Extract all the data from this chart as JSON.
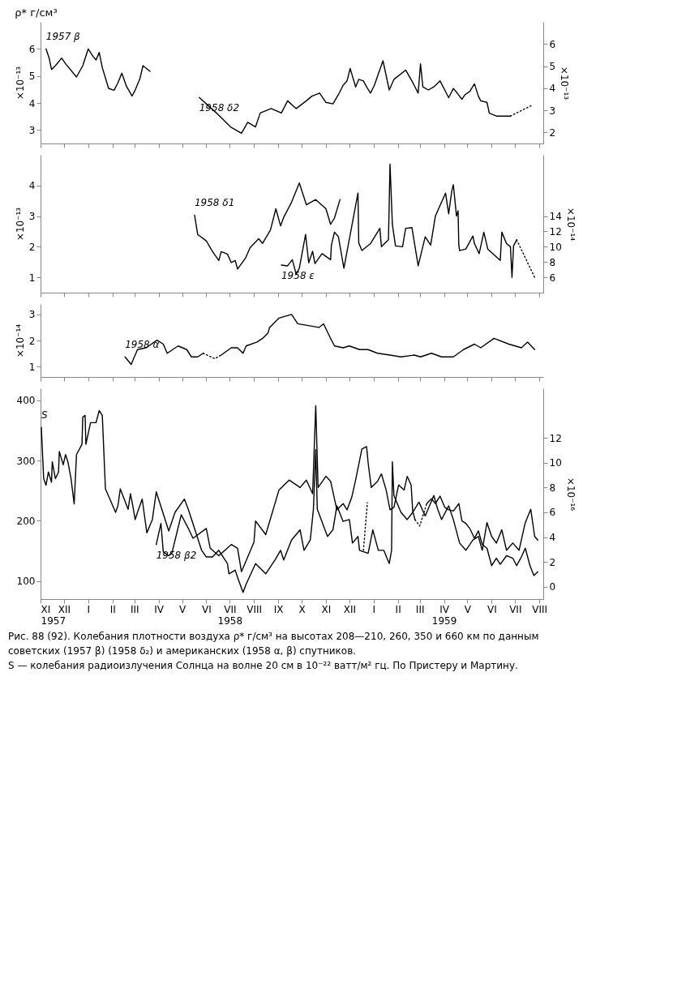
{
  "chart_data": [
    {
      "type": "line",
      "title": "ρ* г/см³",
      "tick_labels": "y",
      "xlim": [
        "1957-11-01",
        "1959-08-06"
      ],
      "xticks": [
        {
          "value": "1957-11-01",
          "label": null
        },
        {
          "value": "1957-12-01",
          "label": null
        },
        {
          "value": "1958-01-01",
          "label": null
        },
        {
          "value": "1958-02-01",
          "label": null
        },
        {
          "value": "1958-03-01",
          "label": null
        },
        {
          "value": "1958-04-01",
          "label": null
        },
        {
          "value": "1958-05-01",
          "label": null
        },
        {
          "value": "1958-06-01",
          "label": null
        },
        {
          "value": "1958-07-01",
          "label": null
        },
        {
          "value": "1958-08-01",
          "label": null
        },
        {
          "value": "1958-09-01",
          "label": null
        },
        {
          "value": "1958-10-01",
          "label": null
        },
        {
          "value": "1958-11-01",
          "label": null
        },
        {
          "value": "1958-12-01",
          "label": null
        },
        {
          "value": "1959-01-01",
          "label": null
        },
        {
          "value": "1959-02-01",
          "label": null
        },
        {
          "value": "1959-03-01",
          "label": null
        },
        {
          "value": "1959-04-01",
          "label": null
        },
        {
          "value": "1959-05-01",
          "label": null
        },
        {
          "value": "1959-06-01",
          "label": null
        },
        {
          "value": "1959-07-01",
          "label": null
        },
        {
          "value": "1959-08-01",
          "label": null
        }
      ],
      "ylabel": "×10⁻¹³",
      "ylim": [
        2.5,
        7.0
      ],
      "yticks": [
        3,
        4,
        5,
        6
      ],
      "y2label": "×10⁻¹³",
      "y2lim": [
        1.5,
        7.0
      ],
      "y2ticks": [
        2,
        3,
        4,
        5,
        6
      ],
      "series": [
        {
          "name": "1957 β",
          "color": "#000000",
          "axis": "y",
          "x": [
            "1957-11-08",
            "1957-11-12",
            "1957-11-15",
            "1957-11-20",
            "1957-11-28",
            "1957-12-03",
            "1957-12-17",
            "1957-12-25",
            "1958-01-01",
            "1958-01-07",
            "1958-01-11",
            "1958-01-15",
            "1958-01-19",
            "1958-01-27",
            "1958-02-03",
            "1958-02-08",
            "1958-02-13",
            "1958-02-19",
            "1958-02-26",
            "1958-03-02",
            "1958-03-08",
            "1958-03-12",
            "1958-03-21"
          ],
          "values": [
            6.0,
            5.66,
            5.24,
            5.38,
            5.66,
            5.45,
            4.96,
            5.38,
            6.0,
            5.73,
            5.59,
            5.87,
            5.31,
            4.54,
            4.47,
            4.75,
            5.1,
            4.61,
            4.26,
            4.47,
            4.89,
            5.38,
            5.17
          ]
        },
        {
          "name": "1958 δ2",
          "color": "#000000",
          "axis": "y2",
          "x": [
            "1958-05-23",
            "1958-06-14",
            "1958-07-02",
            "1958-07-16",
            "1958-07-24",
            "1958-08-03",
            "1958-08-09",
            "1958-08-23",
            "1958-09-05",
            "1958-09-13",
            "1958-09-24",
            "1958-10-07",
            "1958-10-14",
            "1958-10-24",
            "1958-11-01",
            "1958-11-10",
            "1958-11-17",
            "1958-11-23",
            "1958-11-28",
            "1958-12-02",
            "1958-12-05",
            "1958-12-09",
            "1958-12-13",
            "1958-12-19",
            "1958-12-23",
            "1958-12-28",
            "1959-01-02",
            "1959-01-06",
            "1959-01-13",
            "1959-01-21",
            "1959-01-27",
            "1959-02-11",
            "1959-02-19",
            "1959-02-27",
            "1959-03-02",
            "1959-03-05",
            "1959-03-12",
            "1959-03-19",
            "1959-03-27",
            "1959-04-02",
            "1959-04-07",
            "1959-04-13",
            "1959-04-18",
            "1959-04-24",
            "1959-04-28",
            "1959-05-04",
            "1959-05-10",
            "1959-05-15",
            "1959-05-18",
            "1959-05-26",
            "1959-05-29",
            "1959-06-07",
            "1959-06-25"
          ],
          "values": [
            3.58,
            2.88,
            2.25,
            1.96,
            2.46,
            2.25,
            2.88,
            3.08,
            2.88,
            3.43,
            3.08,
            3.43,
            3.64,
            3.78,
            3.36,
            3.29,
            3.71,
            4.13,
            4.33,
            4.89,
            4.54,
            4.06,
            4.4,
            4.33,
            4.06,
            3.78,
            4.13,
            4.54,
            5.24,
            3.92,
            4.4,
            4.82,
            4.33,
            3.78,
            5.1,
            4.06,
            3.92,
            4.06,
            4.33,
            3.92,
            3.57,
            3.99,
            3.78,
            3.5,
            3.71,
            3.85,
            4.2,
            3.64,
            3.43,
            3.36,
            2.87,
            2.74,
            2.74
          ]
        },
        {
          "color": "#000000",
          "axis": "y2",
          "line_style": "dotted",
          "x": [
            "1959-06-25",
            "1959-07-22"
          ],
          "values": [
            2.74,
            3.22
          ]
        }
      ]
    },
    {
      "type": "line",
      "tick_labels": "y",
      "xlim": [
        "1957-11-01",
        "1959-08-06"
      ],
      "xticks": [
        {
          "value": "1957-11-01",
          "label": null
        },
        {
          "value": "1957-12-01",
          "label": null
        },
        {
          "value": "1958-01-01",
          "label": null
        },
        {
          "value": "1958-02-01",
          "label": null
        },
        {
          "value": "1958-03-01",
          "label": null
        },
        {
          "value": "1958-04-01",
          "label": null
        },
        {
          "value": "1958-05-01",
          "label": null
        },
        {
          "value": "1958-06-01",
          "label": null
        },
        {
          "value": "1958-07-01",
          "label": null
        },
        {
          "value": "1958-08-01",
          "label": null
        },
        {
          "value": "1958-09-01",
          "label": null
        },
        {
          "value": "1958-10-01",
          "label": null
        },
        {
          "value": "1958-11-01",
          "label": null
        },
        {
          "value": "1958-12-01",
          "label": null
        },
        {
          "value": "1959-01-01",
          "label": null
        },
        {
          "value": "1959-02-01",
          "label": null
        },
        {
          "value": "1959-03-01",
          "label": null
        },
        {
          "value": "1959-04-01",
          "label": null
        },
        {
          "value": "1959-05-01",
          "label": null
        },
        {
          "value": "1959-06-01",
          "label": null
        },
        {
          "value": "1959-07-01",
          "label": null
        },
        {
          "value": "1959-08-01",
          "label": null
        }
      ],
      "ylabel": "×10⁻¹³",
      "ylim": [
        0.5,
        5.0
      ],
      "yticks": [
        1,
        2,
        3,
        4
      ],
      "y2label": "×10⁻¹⁴",
      "y2lim": [
        4,
        22
      ],
      "y2ticks": [
        6,
        8,
        10,
        12,
        14
      ],
      "series": [
        {
          "name": "1958 δ1",
          "color": "#000000",
          "axis": "y",
          "x": [
            "1958-05-17",
            "1958-05-21",
            "1958-06-01",
            "1958-06-09",
            "1958-06-17",
            "1958-06-20",
            "1958-06-28",
            "1958-07-03",
            "1958-07-08",
            "1958-07-11",
            "1958-07-21",
            "1958-07-27",
            "1958-08-07",
            "1958-08-12",
            "1958-08-22",
            "1958-08-29",
            "1958-09-04",
            "1958-09-08",
            "1958-09-18",
            "1958-09-28",
            "1958-10-07",
            "1958-10-19",
            "1958-11-01",
            "1958-11-07",
            "1958-11-12",
            "1958-11-19"
          ],
          "values": [
            3.03,
            2.4,
            2.19,
            1.84,
            1.55,
            1.84,
            1.76,
            1.48,
            1.55,
            1.27,
            1.62,
            1.97,
            2.26,
            2.11,
            2.54,
            3.24,
            2.68,
            2.96,
            3.45,
            4.08,
            3.37,
            3.54,
            3.24,
            2.73,
            2.94,
            3.54
          ]
        },
        {
          "name": "1958 ε",
          "color": "#000000",
          "axis": "y2",
          "x": [
            "1958-09-05",
            "1958-09-13",
            "1958-09-19",
            "1958-09-24",
            "1958-09-28",
            "1958-10-06",
            "1958-10-10",
            "1958-10-15",
            "1958-10-18",
            "1958-10-27",
            "1958-11-07",
            "1958-11-08",
            "1958-11-12",
            "1958-11-17",
            "1958-11-24",
            "1958-12-12",
            "1958-12-13",
            "1958-12-17",
            "1958-12-28",
            "1959-01-09",
            "1959-01-11",
            "1959-01-20",
            "1959-01-22",
            "1959-01-25",
            "1959-01-29",
            "1959-02-07",
            "1959-02-11",
            "1959-02-19",
            "1959-02-27",
            "1959-03-08",
            "1959-03-15",
            "1959-03-21",
            "1959-04-03",
            "1959-04-07",
            "1959-04-11",
            "1959-04-13",
            "1959-04-17",
            "1959-04-19",
            "1959-04-20",
            "1959-04-21",
            "1959-04-29",
            "1959-05-08",
            "1959-05-10",
            "1959-05-16",
            "1959-05-22",
            "1959-05-27",
            "1959-06-12",
            "1959-06-14",
            "1959-06-20",
            "1959-06-25",
            "1959-06-27",
            "1959-06-29",
            "1959-07-03"
          ],
          "values": [
            7.6,
            7.5,
            8.3,
            6.4,
            7.2,
            11.6,
            7.9,
            9.4,
            7.8,
            9.1,
            8.3,
            10.2,
            11.9,
            11.3,
            7.2,
            17.0,
            10.5,
            9.5,
            10.4,
            12.4,
            10.0,
            10.9,
            20.8,
            12.9,
            10.1,
            10.0,
            12.4,
            12.5,
            7.5,
            11.3,
            10.2,
            14.0,
            17.0,
            14.3,
            17.3,
            18.1,
            14.0,
            14.7,
            10.2,
            9.5,
            9.7,
            11.4,
            10.4,
            9.1,
            11.9,
            9.7,
            8.2,
            11.9,
            10.4,
            10.0,
            6.0,
            10.1,
            10.9
          ]
        },
        {
          "color": "#000000",
          "axis": "y2",
          "line_style": "dotted",
          "x": [
            "1959-07-03",
            "1959-07-26"
          ],
          "values": [
            10.9,
            6.0
          ]
        }
      ]
    },
    {
      "type": "line",
      "tick_labels": "y",
      "xlim": [
        "1957-11-01",
        "1959-08-06"
      ],
      "xticks": [
        {
          "value": "1957-11-01",
          "label": null
        },
        {
          "value": "1957-12-01",
          "label": null
        },
        {
          "value": "1958-01-01",
          "label": null
        },
        {
          "value": "1958-02-01",
          "label": null
        },
        {
          "value": "1958-03-01",
          "label": null
        },
        {
          "value": "1958-04-01",
          "label": null
        },
        {
          "value": "1958-05-01",
          "label": null
        },
        {
          "value": "1958-06-01",
          "label": null
        },
        {
          "value": "1958-07-01",
          "label": null
        },
        {
          "value": "1958-08-01",
          "label": null
        },
        {
          "value": "1958-09-01",
          "label": null
        },
        {
          "value": "1958-10-01",
          "label": null
        },
        {
          "value": "1958-11-01",
          "label": null
        },
        {
          "value": "1958-12-01",
          "label": null
        },
        {
          "value": "1959-01-01",
          "label": null
        },
        {
          "value": "1959-02-01",
          "label": null
        },
        {
          "value": "1959-03-01",
          "label": null
        },
        {
          "value": "1959-04-01",
          "label": null
        },
        {
          "value": "1959-05-01",
          "label": null
        },
        {
          "value": "1959-06-01",
          "label": null
        },
        {
          "value": "1959-07-01",
          "label": null
        },
        {
          "value": "1959-08-01",
          "label": null
        }
      ],
      "ylabel": "×10⁻¹⁴",
      "ylim": [
        0.6,
        3.4
      ],
      "yticks": [
        1,
        2,
        3
      ],
      "series": [
        {
          "name": "1958 α",
          "color": "#000000",
          "axis": "y",
          "x": [
            "1958-02-17",
            "1958-02-25",
            "1958-02-28",
            "1958-03-05",
            "1958-03-16",
            "1958-03-30",
            "1958-04-07",
            "1958-04-12",
            "1958-04-26",
            "1958-05-07",
            "1958-05-13",
            "1958-05-21",
            "1958-05-28"
          ],
          "values": [
            1.37,
            1.08,
            1.3,
            1.65,
            1.72,
            2.01,
            1.86,
            1.51,
            1.79,
            1.65,
            1.37,
            1.37,
            1.51
          ]
        },
        {
          "color": "#000000",
          "axis": "y",
          "x": [
            "1958-06-20",
            "1958-07-03",
            "1958-07-11",
            "1958-07-18",
            "1958-07-22",
            "1958-08-05",
            "1958-08-12",
            "1958-08-19",
            "1958-08-21",
            "1958-09-02",
            "1958-09-10",
            "1958-09-18",
            "1958-09-26",
            "1958-10-23",
            "1958-10-29",
            "1958-11-07",
            "1958-11-12",
            "1958-11-23",
            "1958-12-01",
            "1958-12-14",
            "1958-12-25",
            "1959-01-06",
            "1959-01-22",
            "1959-02-05",
            "1959-02-22",
            "1959-03-02",
            "1959-03-16",
            "1959-03-29",
            "1959-04-13",
            "1959-04-26",
            "1959-05-10",
            "1959-05-18",
            "1959-06-04",
            "1959-06-23",
            "1959-07-09",
            "1959-07-17",
            "1959-07-26"
          ],
          "values": [
            1.44,
            1.72,
            1.72,
            1.51,
            1.79,
            1.94,
            2.08,
            2.29,
            2.5,
            2.86,
            2.93,
            3.0,
            2.64,
            2.5,
            2.64,
            2.08,
            1.79,
            1.72,
            1.79,
            1.65,
            1.65,
            1.51,
            1.44,
            1.37,
            1.44,
            1.37,
            1.51,
            1.37,
            1.37,
            1.65,
            1.86,
            1.72,
            2.08,
            1.86,
            1.72,
            1.94,
            1.65
          ]
        },
        {
          "color": "#000000",
          "axis": "y",
          "line_style": "dotted",
          "x": [
            "1958-05-28",
            "1958-06-12",
            "1958-06-20"
          ],
          "values": [
            1.51,
            1.3,
            1.44
          ]
        }
      ]
    },
    {
      "type": "line",
      "annotations": [
        "Рис. 88 (92). Колебания плотности воздуха ρ* г/см³ на высотах 208—210, 260, 350 и 660 км по данным советских (1957 β) (1958 δ₂) и американских (1958 α, β) спутников.",
        "S — колебания радиоизлучения Солнца на волне 20 см в 10⁻²² ватт/м² гц. По Пристеру и Мартину."
      ],
      "xlim": [
        "1957-11-01",
        "1959-08-06"
      ],
      "xticks": [
        {
          "value": "1957-11-01",
          "label": "XI\n1957"
        },
        {
          "value": "1957-12-01",
          "label": "XII"
        },
        {
          "value": "1958-01-01",
          "label": "I"
        },
        {
          "value": "1958-02-01",
          "label": "II"
        },
        {
          "value": "1958-03-01",
          "label": "III"
        },
        {
          "value": "1958-04-01",
          "label": "IV"
        },
        {
          "value": "1958-05-01",
          "label": "V"
        },
        {
          "value": "1958-06-01",
          "label": "VI"
        },
        {
          "value": "1958-07-01",
          "label": "VII\n1958"
        },
        {
          "value": "1958-08-01",
          "label": "VIII"
        },
        {
          "value": "1958-09-01",
          "label": "IX"
        },
        {
          "value": "1958-10-01",
          "label": "X"
        },
        {
          "value": "1958-11-01",
          "label": "XI"
        },
        {
          "value": "1958-12-01",
          "label": "XII"
        },
        {
          "value": "1959-01-01",
          "label": "I"
        },
        {
          "value": "1959-02-01",
          "label": "II"
        },
        {
          "value": "1959-03-01",
          "label": "III"
        },
        {
          "value": "1959-04-01",
          "label": "IV\n1959"
        },
        {
          "value": "1959-05-01",
          "label": "V"
        },
        {
          "value": "1959-06-01",
          "label": "VI"
        },
        {
          "value": "1959-07-01",
          "label": "VII"
        },
        {
          "value": "1959-08-01",
          "label": "VIII"
        }
      ],
      "ylim": [
        70,
        420
      ],
      "yticks": [
        100,
        200,
        300,
        400
      ],
      "y2label": "×10⁻¹⁶",
      "y2lim": [
        -1,
        16
      ],
      "y2ticks": [
        0,
        2,
        4,
        6,
        8,
        10,
        12
      ],
      "series": [
        {
          "name": "S",
          "color": "#000000",
          "axis": "y",
          "x": [
            "1957-11-02",
            "1957-11-05",
            "1957-11-08",
            "1957-11-11",
            "1957-11-15",
            "1957-11-16",
            "1957-11-20",
            "1957-11-24",
            "1957-11-25",
            "1957-11-30",
            "1957-12-03",
            "1957-12-06",
            "1957-12-10",
            "1957-12-14",
            "1957-12-17",
            "1957-12-24",
            "1957-12-25",
            "1957-12-28",
            "1957-12-29",
            "1958-01-04",
            "1958-01-11",
            "1958-01-15",
            "1958-01-19",
            "1958-01-23",
            "1958-02-05",
            "1958-02-08",
            "1958-02-11",
            "1958-02-21",
            "1958-02-24",
            "1958-02-27",
            "1958-03-02",
            "1958-03-05",
            "1958-03-11",
            "1958-03-14",
            "1958-03-17",
            "1958-03-24",
            "1958-03-29",
            "1958-04-14",
            "1958-04-22",
            "1958-05-04",
            "1958-05-09",
            "1958-05-26",
            "1958-06-01",
            "1958-06-09",
            "1958-06-17",
            "1958-06-28",
            "1958-06-30",
            "1958-07-08",
            "1958-07-11",
            "1958-07-18",
            "1958-07-22",
            "1958-08-03",
            "1958-08-16",
            "1958-08-28",
            "1958-09-04",
            "1958-09-08",
            "1958-09-18",
            "1958-09-29",
            "1958-10-04",
            "1958-10-12",
            "1958-10-16",
            "1958-10-19",
            "1958-10-21",
            "1958-10-26",
            "1958-11-03",
            "1958-11-10",
            "1958-11-15",
            "1958-11-23",
            "1958-12-01",
            "1958-12-05",
            "1958-12-12",
            "1958-12-14",
            "1958-12-25",
            "1958-12-31",
            "1959-01-07",
            "1959-01-14",
            "1959-01-21",
            "1959-01-24",
            "1959-01-25",
            "1959-01-27",
            "1959-02-05",
            "1959-02-13",
            "1959-02-20",
            "1959-02-28",
            "1959-03-08",
            "1959-03-19",
            "1959-03-24",
            "1959-03-29",
            "1959-04-07",
            "1959-04-13",
            "1959-04-21",
            "1959-04-29",
            "1959-05-08",
            "1959-05-15",
            "1959-05-20",
            "1959-05-26",
            "1959-06-01",
            "1959-06-07",
            "1959-06-14",
            "1959-06-20",
            "1959-06-28",
            "1959-07-06",
            "1959-07-14",
            "1959-07-21",
            "1959-07-26",
            "1959-07-30"
          ],
          "values": [
            355,
            270,
            259,
            281,
            264,
            298,
            270,
            281,
            315,
            293,
            310,
            298,
            270,
            228,
            310,
            327,
            372,
            375,
            327,
            363,
            363,
            383,
            375,
            253,
            214,
            225,
            253,
            219,
            245,
            225,
            202,
            214,
            236,
            208,
            180,
            202,
            248,
            183,
            214,
            236,
            219,
            151,
            140,
            140,
            151,
            129,
            112,
            118,
            106,
            81,
            95,
            129,
            112,
            135,
            151,
            135,
            168,
            185,
            151,
            168,
            219,
            318,
            219,
            202,
            174,
            185,
            225,
            199,
            202,
            163,
            174,
            151,
            146,
            185,
            151,
            151,
            129,
            151,
            298,
            242,
            214,
            202,
            214,
            231,
            208,
            242,
            219,
            202,
            225,
            202,
            163,
            151,
            168,
            174,
            151,
            197,
            174,
            163,
            185,
            151,
            163,
            151,
            197,
            219,
            174,
            168
          ]
        },
        {
          "color": "#000000",
          "axis": "y",
          "line_style": "dotted",
          "x": [
            "1958-12-19",
            "1958-12-24"
          ],
          "values": [
            151,
            230
          ]
        },
        {
          "name": "1958 β2",
          "color": "#000000",
          "axis": "y2",
          "x": [
            "1958-03-29",
            "1958-04-04",
            "1958-04-07",
            "1958-04-14",
            "1958-04-18",
            "1958-04-30",
            "1958-05-09",
            "1958-05-15",
            "1958-06-01",
            "1958-06-06",
            "1958-06-17",
            "1958-07-03",
            "1958-07-11",
            "1958-07-16",
            "1958-08-01",
            "1958-08-03",
            "1958-08-16",
            "1958-09-02",
            "1958-09-15",
            "1958-09-29",
            "1958-10-07",
            "1958-10-15",
            "1958-10-19",
            "1958-10-22",
            "1958-11-01",
            "1958-11-07",
            "1958-11-15",
            "1958-11-23",
            "1958-11-28",
            "1958-12-04",
            "1958-12-09",
            "1958-12-17",
            "1958-12-23",
            "1958-12-25",
            "1958-12-29",
            "1959-01-06",
            "1959-01-11",
            "1959-01-17",
            "1959-01-22",
            "1959-01-27",
            "1959-02-02",
            "1959-02-09",
            "1959-02-13",
            "1959-02-18",
            "1959-02-20",
            "1959-02-23"
          ],
          "values": [
            3.4,
            5.1,
            2.8,
            2.5,
            2.7,
            5.8,
            4.7,
            3.9,
            4.7,
            3.1,
            2.5,
            3.4,
            3.1,
            1.2,
            3.6,
            5.3,
            4.2,
            7.8,
            8.6,
            8.0,
            8.6,
            7.5,
            14.6,
            8.0,
            8.9,
            8.5,
            6.2,
            6.7,
            6.2,
            7.2,
            8.6,
            11.1,
            11.3,
            10.0,
            8.0,
            8.5,
            9.1,
            7.8,
            6.2,
            6.4,
            8.2,
            7.8,
            8.9,
            8.2,
            6.1,
            5.4
          ]
        },
        {
          "color": "#000000",
          "axis": "y2",
          "x": [
            "1959-03-10",
            "1959-03-16",
            "1959-03-21",
            "1959-03-27",
            "1959-04-02",
            "1959-04-07",
            "1959-04-13",
            "1959-04-20",
            "1959-04-24",
            "1959-04-29",
            "1959-05-04",
            "1959-05-10",
            "1959-05-15",
            "1959-05-20",
            "1959-05-26",
            "1959-06-01",
            "1959-06-07",
            "1959-06-12",
            "1959-06-20",
            "1959-06-28",
            "1959-07-03",
            "1959-07-09",
            "1959-07-14",
            "1959-07-20",
            "1959-07-25",
            "1959-07-30"
          ],
          "values": [
            6.7,
            7.1,
            6.7,
            7.3,
            6.4,
            6.2,
            6.1,
            6.7,
            5.3,
            5.1,
            4.7,
            3.9,
            4.5,
            3.4,
            3.1,
            1.7,
            2.3,
            1.8,
            2.5,
            2.3,
            1.7,
            2.4,
            3.1,
            1.7,
            0.9,
            1.2
          ]
        },
        {
          "color": "#000000",
          "axis": "y2",
          "line_style": "dotted",
          "x": [
            "1959-02-23",
            "1959-03-01",
            "1959-03-10"
          ],
          "values": [
            5.4,
            4.9,
            6.7
          ]
        }
      ]
    }
  ]
}
